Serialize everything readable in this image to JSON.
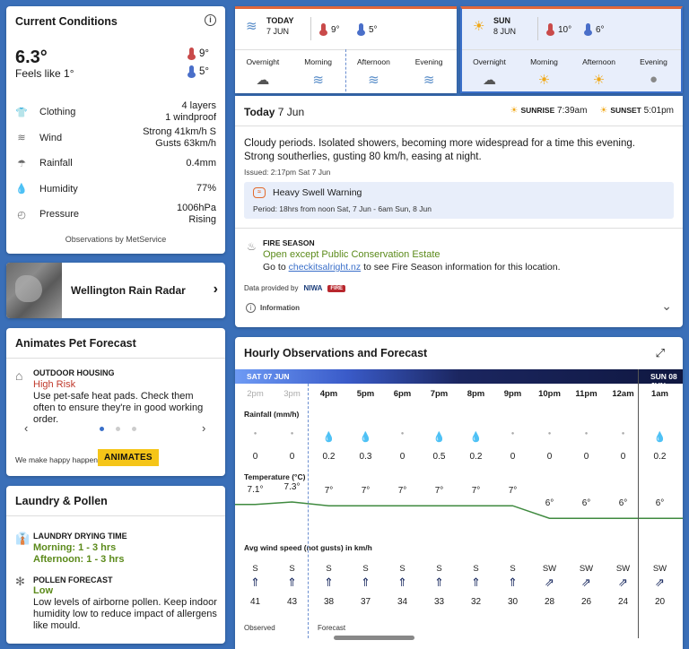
{
  "current": {
    "title": "Current Conditions",
    "info_label": "i",
    "temp": "6.3°",
    "feels": "Feels like 1°",
    "hi": "9°",
    "lo": "5°",
    "rows": [
      {
        "icon": "shirt-icon",
        "glyph": "👕",
        "label": "Clothing",
        "value1": "4 layers",
        "value2": "1 windproof"
      },
      {
        "icon": "wind-icon",
        "glyph": "≋",
        "label": "Wind",
        "value1": "Strong 41km/h S",
        "value2": "Gusts 63km/h"
      },
      {
        "icon": "rain-icon",
        "glyph": "☂",
        "label": "Rainfall",
        "value1": "0.4mm",
        "value2": ""
      },
      {
        "icon": "humidity-icon",
        "glyph": "💧",
        "label": "Humidity",
        "value1": "77%",
        "value2": ""
      },
      {
        "icon": "pressure-icon",
        "glyph": "◴",
        "label": "Pressure",
        "value1": "1006hPa",
        "value2": "Rising"
      }
    ],
    "observations": "Observations by MetService"
  },
  "radar": {
    "title": "Wellington Rain Radar",
    "chevron": "›"
  },
  "pet": {
    "title": "Animates Pet Forecast",
    "heading": "OUTDOOR HOUSING",
    "risk": "High Risk",
    "desc": "Use pet-safe heat pads. Check them often to ensure they're in good working order.",
    "prev": "‹",
    "next": "›",
    "tagline": "We make happy happen",
    "logo": "ANIMATES"
  },
  "laundry": {
    "title": "Laundry & Pollen",
    "drying_head": "LAUNDRY DRYING TIME",
    "morning": "Morning: 1 - 3 hrs",
    "afternoon": "Afternoon: 1 - 3 hrs",
    "pollen_head": "POLLEN FORECAST",
    "pollen_level": "Low",
    "pollen_desc": "Low levels of airborne pollen. Keep indoor humidity low to reduce impact of allergens like mould."
  },
  "tabs": [
    {
      "day": "TODAY",
      "date": "7 JUN",
      "hi": "9°",
      "lo": "5°",
      "periods": [
        {
          "label": "Overnight"
        },
        {
          "label": "Morning"
        },
        {
          "label": "Afternoon"
        },
        {
          "label": "Evening"
        }
      ]
    },
    {
      "day": "SUN",
      "date": "8 JUN",
      "hi": "10°",
      "lo": "6°",
      "periods": [
        {
          "label": "Overnight"
        },
        {
          "label": "Morning"
        },
        {
          "label": "Afternoon"
        },
        {
          "label": "Evening"
        }
      ]
    }
  ],
  "today": {
    "title": "Today",
    "date": "7 Jun",
    "sunrise_label": "SUNRISE",
    "sunrise": "7:39am",
    "sunset_label": "SUNSET",
    "sunset": "5:01pm",
    "forecast": "Cloudy periods. Isolated showers, becoming more widespread for a time this evening. Strong southerlies, gusting 80 km/h, easing at night.",
    "issued": "Issued: 2:17pm Sat 7 Jun",
    "warning_title": "Heavy Swell Warning",
    "warning_period": "Period: 18hrs from noon Sat, 7 Jun - 6am Sun, 8 Jun",
    "fire_head": "FIRE SEASON",
    "fire_status": "Open except Public Conservation Estate",
    "fire_go": "Go to",
    "fire_link": "checkitsalright.nz",
    "fire_rest": "to see Fire Season information for this location.",
    "provided": "Data provided by",
    "niwa": "NIWA",
    "fire_logo": "FIRE",
    "info": "Information"
  },
  "hourly": {
    "title": "Hourly Observations and Forecast",
    "day1": "SAT 07 JUN",
    "day2": "SUN 08 JUN",
    "rain_label": "Rainfall (mm/h)",
    "temp_label": "Temperature (°C)",
    "wind_label": "Avg wind speed (not gusts) in km/h",
    "observed": "Observed",
    "forecast": "Forecast",
    "hours": [
      {
        "hr": "2pm",
        "past": true,
        "rain": "0",
        "temp": "7.1°",
        "t": 7.1,
        "dir": "S",
        "spd": "41"
      },
      {
        "hr": "3pm",
        "past": true,
        "rain": "0",
        "temp": "7.3°",
        "t": 7.3,
        "dir": "S",
        "spd": "43"
      },
      {
        "hr": "4pm",
        "past": false,
        "rain": "0.2",
        "temp": "7°",
        "t": 7,
        "dir": "S",
        "spd": "38"
      },
      {
        "hr": "5pm",
        "past": false,
        "rain": "0.3",
        "temp": "7°",
        "t": 7,
        "dir": "S",
        "spd": "37"
      },
      {
        "hr": "6pm",
        "past": false,
        "rain": "0",
        "temp": "7°",
        "t": 7,
        "dir": "S",
        "spd": "34"
      },
      {
        "hr": "7pm",
        "past": false,
        "rain": "0.5",
        "temp": "7°",
        "t": 7,
        "dir": "S",
        "spd": "33"
      },
      {
        "hr": "8pm",
        "past": false,
        "rain": "0.2",
        "temp": "7°",
        "t": 7,
        "dir": "S",
        "spd": "32"
      },
      {
        "hr": "9pm",
        "past": false,
        "rain": "0",
        "temp": "7°",
        "t": 7,
        "dir": "S",
        "spd": "30"
      },
      {
        "hr": "10pm",
        "past": false,
        "rain": "0",
        "temp": "6°",
        "t": 6,
        "dir": "SW",
        "spd": "28"
      },
      {
        "hr": "11pm",
        "past": false,
        "rain": "0",
        "temp": "6°",
        "t": 6,
        "dir": "SW",
        "spd": "26"
      },
      {
        "hr": "12am",
        "past": false,
        "rain": "0",
        "temp": "6°",
        "t": 6,
        "dir": "SW",
        "spd": "24"
      },
      {
        "hr": "1am",
        "past": false,
        "rain": "0.2",
        "temp": "6°",
        "t": 6,
        "dir": "SW",
        "spd": "20"
      }
    ]
  },
  "colors": {
    "accent": "#3a6fc9",
    "warning": "#e26a2c",
    "green": "#5b8a1a",
    "temp_line": "#3f8a3f"
  }
}
